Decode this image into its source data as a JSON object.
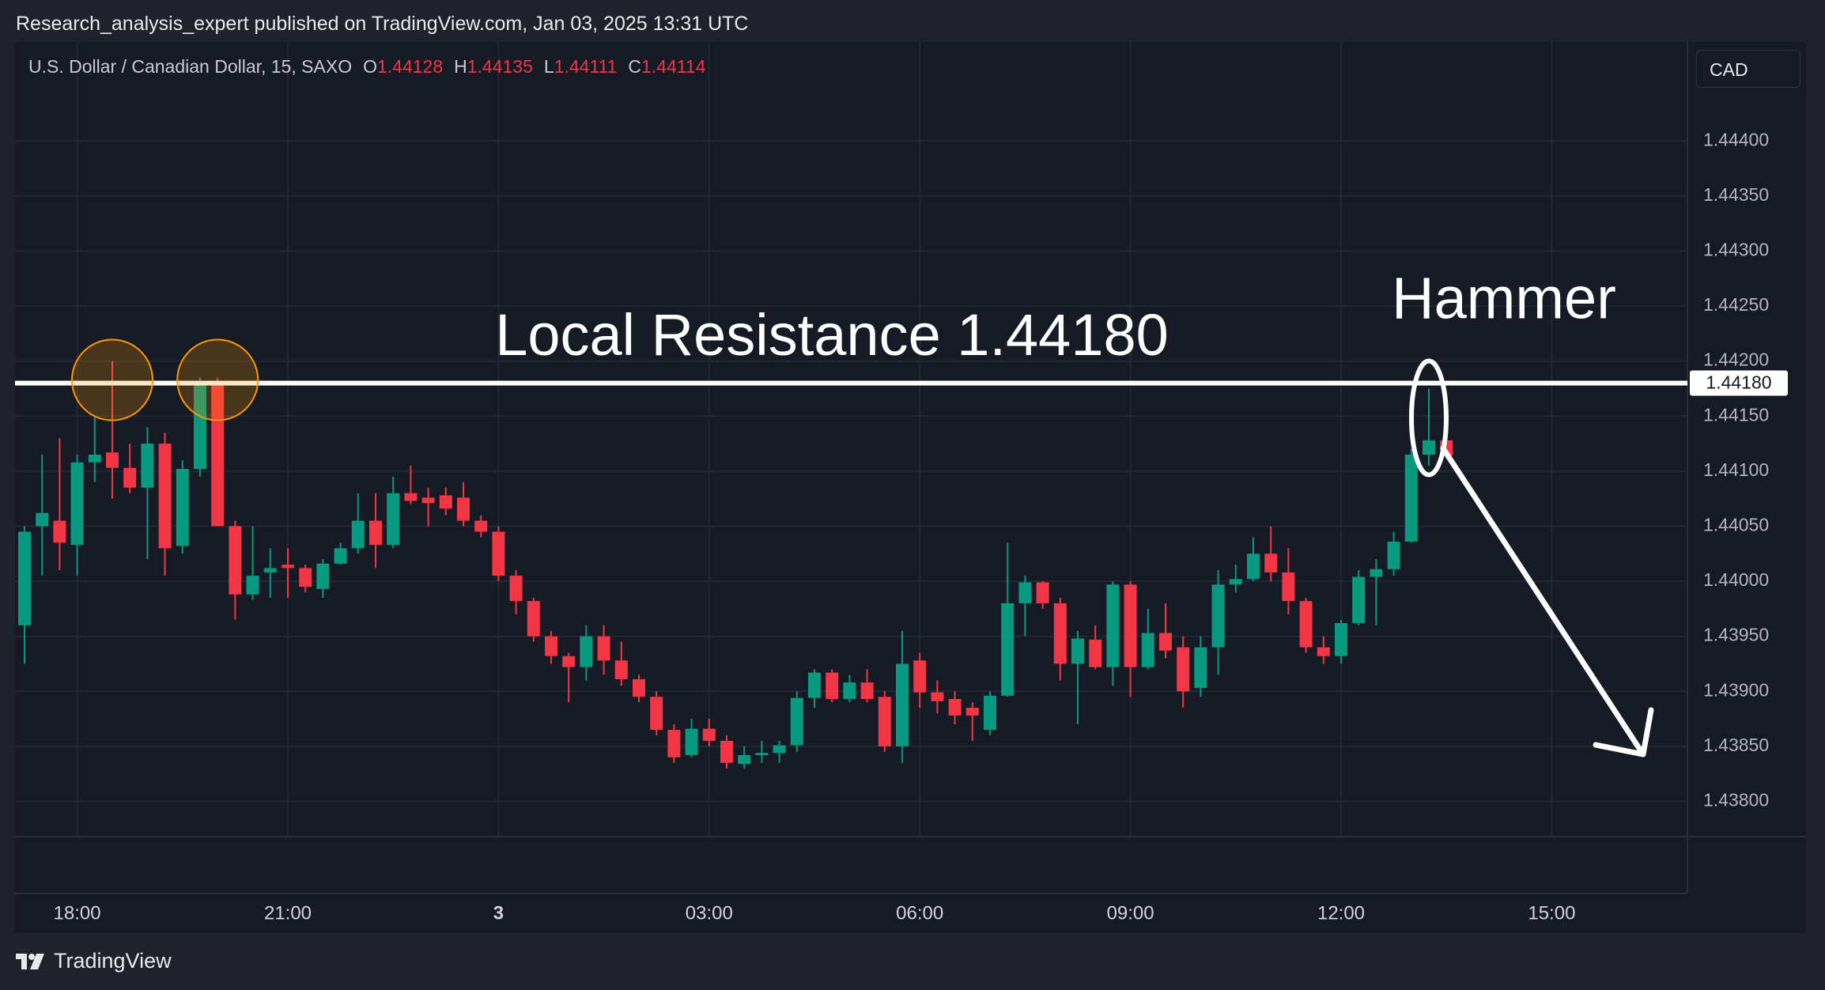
{
  "header": {
    "byline": "Research_analysis_expert published on TradingView.com, Jan 03, 2025 13:31 UTC",
    "symbol": "U.S. Dollar / Canadian Dollar, 15, SAXO",
    "ohlc": [
      {
        "key": "O",
        "value": "1.44128"
      },
      {
        "key": "H",
        "value": "1.44135"
      },
      {
        "key": "L",
        "value": "1.44111"
      },
      {
        "key": "C",
        "value": "1.44114"
      }
    ],
    "currency": "CAD",
    "brand": "TradingView"
  },
  "chart_data": {
    "type": "candlestick",
    "categories": [
      "17:15",
      "17:30",
      "17:45",
      "18:00",
      "18:15",
      "18:30",
      "18:45",
      "19:00",
      "19:15",
      "19:30",
      "19:45",
      "20:00",
      "20:15",
      "20:30",
      "20:45",
      "21:00",
      "21:15",
      "21:30",
      "21:45",
      "22:00",
      "22:15",
      "22:30",
      "22:45",
      "23:00",
      "23:15",
      "23:30",
      "23:45",
      "00:00",
      "00:15",
      "00:30",
      "00:45",
      "01:00",
      "01:15",
      "01:30",
      "01:45",
      "02:00",
      "02:15",
      "02:30",
      "02:45",
      "03:00",
      "03:15",
      "03:30",
      "03:45",
      "04:00",
      "04:15",
      "04:30",
      "04:45",
      "05:00",
      "05:15",
      "05:30",
      "05:45",
      "06:00",
      "06:15",
      "06:30",
      "06:45",
      "07:00",
      "07:15",
      "07:30",
      "07:45",
      "08:00",
      "08:15",
      "08:30",
      "08:45",
      "09:00",
      "09:15",
      "09:30",
      "09:45",
      "10:00",
      "10:15",
      "10:30",
      "10:45",
      "11:00",
      "11:15",
      "11:30",
      "11:45",
      "12:00",
      "12:15",
      "12:30",
      "12:45",
      "13:00",
      "13:15",
      "13:30"
    ],
    "open": [
      1.4396,
      1.4405,
      1.44055,
      1.44033,
      1.44108,
      1.44117,
      1.44103,
      1.44085,
      1.44125,
      1.44032,
      1.44102,
      1.4418,
      1.4405,
      1.43988,
      1.44008,
      1.44015,
      1.44012,
      1.43993,
      1.44016,
      1.4403,
      1.44055,
      1.44033,
      1.4408,
      1.44076,
      1.44078,
      1.44076,
      1.44055,
      1.44045,
      1.44005,
      1.43982,
      1.4395,
      1.43932,
      1.43922,
      1.4395,
      1.43928,
      1.43911,
      1.43895,
      1.43865,
      1.43842,
      1.43866,
      1.43855,
      1.43834,
      1.43842,
      1.43844,
      1.43851,
      1.43894,
      1.43917,
      1.43893,
      1.43908,
      1.43895,
      1.4385,
      1.43928,
      1.43899,
      1.43893,
      1.43885,
      1.43865,
      1.43896,
      1.4398,
      1.43999,
      1.4398,
      1.43925,
      1.43947,
      1.43922,
      1.43997,
      1.43922,
      1.43953,
      1.4394,
      1.43903,
      1.4394,
      1.43997,
      1.44002,
      1.44025,
      1.44008,
      1.43982,
      1.4394,
      1.43932,
      1.43962,
      1.44004,
      1.44011,
      1.44036,
      1.44115,
      1.44128
    ],
    "high": [
      1.4405,
      1.44115,
      1.4413,
      1.44115,
      1.4415,
      1.442,
      1.44125,
      1.4414,
      1.44135,
      1.4411,
      1.44185,
      1.44185,
      1.44055,
      1.4405,
      1.4403,
      1.4403,
      1.44015,
      1.4402,
      1.44035,
      1.4408,
      1.4408,
      1.44095,
      1.44105,
      1.44085,
      1.44085,
      1.4409,
      1.4406,
      1.4405,
      1.4401,
      1.43985,
      1.43955,
      1.43935,
      1.4396,
      1.4396,
      1.43945,
      1.43915,
      1.439,
      1.4387,
      1.43875,
      1.43875,
      1.4386,
      1.4385,
      1.43855,
      1.43855,
      1.439,
      1.4392,
      1.4392,
      1.43915,
      1.4392,
      1.439,
      1.43955,
      1.43935,
      1.4391,
      1.439,
      1.4389,
      1.439,
      1.44035,
      1.44005,
      1.44,
      1.43985,
      1.43955,
      1.4396,
      1.44,
      1.44,
      1.43975,
      1.4398,
      1.4395,
      1.4395,
      1.4401,
      1.44015,
      1.4404,
      1.4405,
      1.4403,
      1.43985,
      1.4395,
      1.43965,
      1.4401,
      1.4402,
      1.44045,
      1.4412,
      1.44175,
      1.44135
    ],
    "low": [
      1.43925,
      1.44005,
      1.4401,
      1.44005,
      1.4409,
      1.44075,
      1.4408,
      1.4402,
      1.44005,
      1.44025,
      1.44095,
      1.4405,
      1.43965,
      1.43983,
      1.43985,
      1.43985,
      1.4399,
      1.43985,
      1.44015,
      1.44025,
      1.44012,
      1.4403,
      1.4407,
      1.4405,
      1.4406,
      1.4405,
      1.4404,
      1.44,
      1.4397,
      1.43945,
      1.43925,
      1.4389,
      1.4391,
      1.43915,
      1.43905,
      1.4389,
      1.4386,
      1.43835,
      1.4384,
      1.4385,
      1.4383,
      1.4383,
      1.43835,
      1.43835,
      1.43845,
      1.43885,
      1.4389,
      1.4389,
      1.4389,
      1.43845,
      1.43835,
      1.43885,
      1.4388,
      1.4387,
      1.43855,
      1.4386,
      1.43895,
      1.4395,
      1.43975,
      1.4391,
      1.4387,
      1.4392,
      1.43905,
      1.43895,
      1.4392,
      1.4393,
      1.43885,
      1.43895,
      1.43915,
      1.4399,
      1.44,
      1.44,
      1.4397,
      1.43935,
      1.43925,
      1.43925,
      1.4396,
      1.4396,
      1.44005,
      1.44035,
      1.44105,
      1.44111
    ],
    "close": [
      1.44045,
      1.44062,
      1.44035,
      1.44108,
      1.44115,
      1.44103,
      1.44085,
      1.44125,
      1.4403,
      1.44102,
      1.4418,
      1.4405,
      1.43988,
      1.44005,
      1.44012,
      1.44012,
      1.43995,
      1.44016,
      1.4403,
      1.44055,
      1.44033,
      1.4408,
      1.44073,
      1.44071,
      1.44066,
      1.44055,
      1.44045,
      1.44005,
      1.43982,
      1.4395,
      1.43932,
      1.43922,
      1.4395,
      1.43928,
      1.43911,
      1.43895,
      1.43865,
      1.4384,
      1.43866,
      1.43855,
      1.43835,
      1.43842,
      1.43844,
      1.43851,
      1.43894,
      1.43917,
      1.43893,
      1.43908,
      1.43893,
      1.4385,
      1.43925,
      1.43899,
      1.43891,
      1.43878,
      1.43878,
      1.43896,
      1.4398,
      1.43999,
      1.4398,
      1.43925,
      1.43948,
      1.43922,
      1.43997,
      1.43922,
      1.43953,
      1.43937,
      1.439,
      1.4394,
      1.43997,
      1.44002,
      1.44025,
      1.44008,
      1.43982,
      1.4394,
      1.43932,
      1.43962,
      1.44004,
      1.44011,
      1.44036,
      1.44115,
      1.44128,
      1.44114
    ],
    "up_color": "#089981",
    "down_color": "#f23645",
    "ylim": [
      1.43768,
      1.4449
    ],
    "yticks": [
      {
        "value": 1.438,
        "label": "1.43800"
      },
      {
        "value": 1.4385,
        "label": "1.43850"
      },
      {
        "value": 1.439,
        "label": "1.43900"
      },
      {
        "value": 1.4395,
        "label": "1.43950"
      },
      {
        "value": 1.44,
        "label": "1.44000"
      },
      {
        "value": 1.4405,
        "label": "1.44050"
      },
      {
        "value": 1.441,
        "label": "1.44100"
      },
      {
        "value": 1.4415,
        "label": "1.44150"
      },
      {
        "value": 1.442,
        "label": "1.44200"
      },
      {
        "value": 1.4425,
        "label": "1.44250"
      },
      {
        "value": 1.443,
        "label": "1.44300"
      },
      {
        "value": 1.4435,
        "label": "1.44350"
      },
      {
        "value": 1.444,
        "label": "1.44400"
      }
    ],
    "xticks": [
      {
        "value": "18:00",
        "label": "18:00"
      },
      {
        "value": "21:00",
        "label": "21:00"
      },
      {
        "value": "00:00",
        "label": "3"
      },
      {
        "value": "03:00",
        "label": "03:00"
      },
      {
        "value": "06:00",
        "label": "06:00"
      },
      {
        "value": "09:00",
        "label": "09:00"
      },
      {
        "value": "12:00",
        "label": "12:00"
      },
      {
        "value": "15:00",
        "label": "15:00"
      }
    ],
    "grid": true,
    "resistance": {
      "value": 1.4418,
      "label": "1.44180",
      "text": "Local Resistance 1.44180"
    },
    "annotations": [
      {
        "text": "Hammer"
      }
    ]
  }
}
